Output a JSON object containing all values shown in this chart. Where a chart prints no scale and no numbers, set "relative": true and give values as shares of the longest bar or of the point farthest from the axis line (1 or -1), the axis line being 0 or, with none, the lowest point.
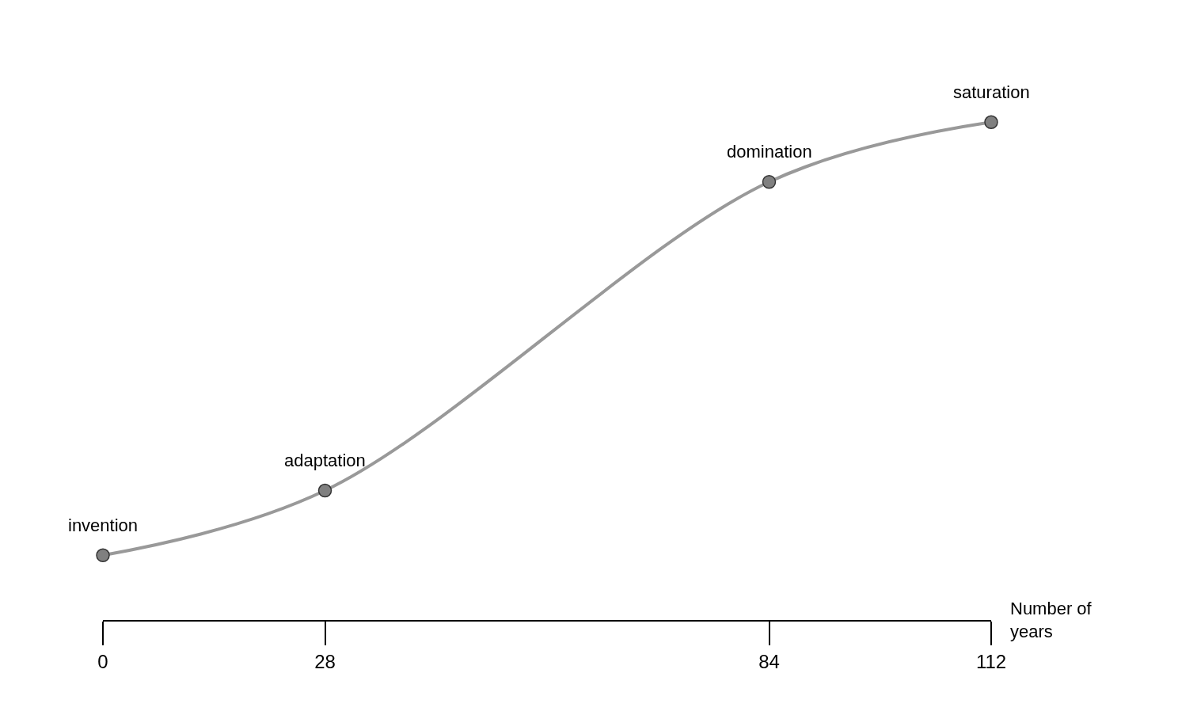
{
  "chart_data": {
    "type": "line",
    "relative": true,
    "x": [
      0,
      28,
      84,
      112
    ],
    "series": [
      {
        "color": "#999999",
        "values": [
          0.13,
          0.26,
          0.88,
          1
        ]
      }
    ],
    "xlim": [
      0,
      112
    ],
    "xticks": [
      0,
      28,
      84,
      112
    ],
    "xlabel": "Number of years",
    "marker": "circle",
    "tick_labels": "x",
    "annotations": [
      {
        "text": "invention",
        "x": 0,
        "y": 0.13
      },
      {
        "text": "adaptation",
        "x": 28,
        "y": 0.26
      },
      {
        "text": "domination",
        "x": 84,
        "y": 0.88
      },
      {
        "text": "saturation",
        "x": 112,
        "y": 1
      }
    ]
  }
}
